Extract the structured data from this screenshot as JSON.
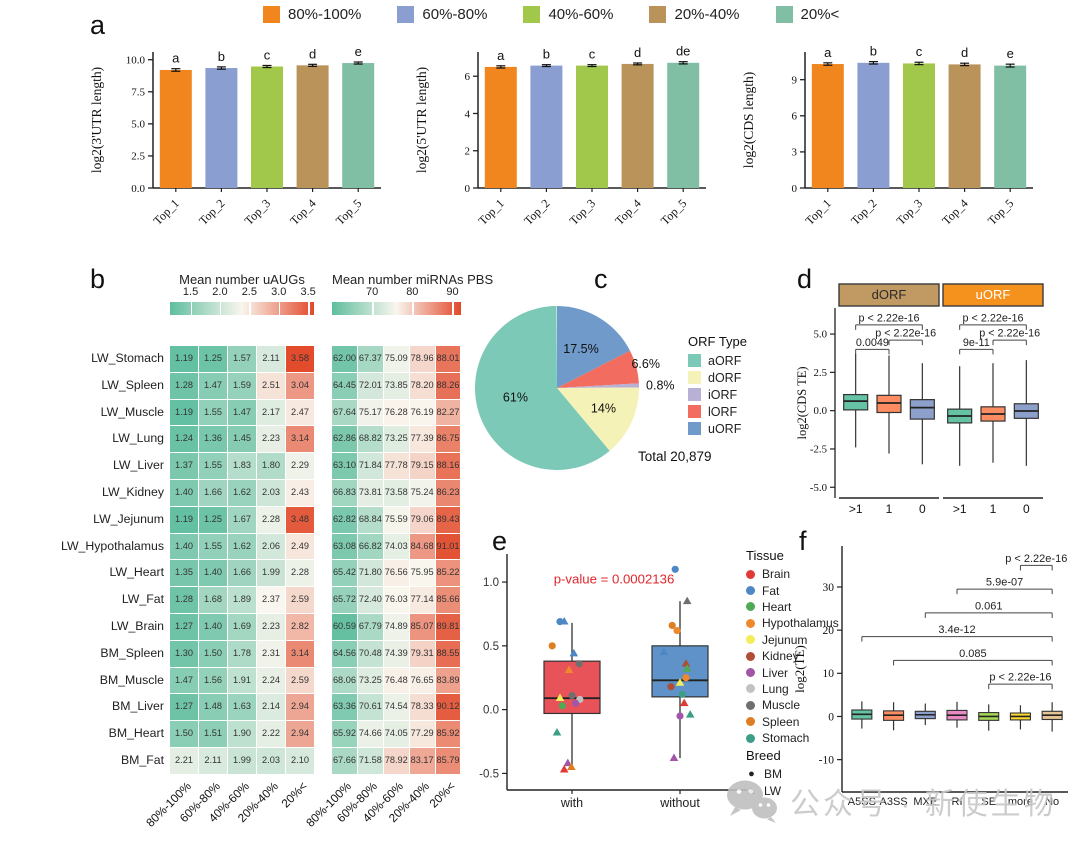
{
  "figure": {
    "panel_letters": {
      "a": "a",
      "b": "b",
      "c": "c",
      "d": "d",
      "e": "e",
      "f": "f"
    },
    "legend_a": {
      "items": [
        {
          "label": "80%-100%",
          "color": "#F0861D"
        },
        {
          "label": "60%-80%",
          "color": "#8B9ED1"
        },
        {
          "label": "40%-60%",
          "color": "#A2C84B"
        },
        {
          "label": "20%-40%",
          "color": "#B9935A"
        },
        {
          "label": "20%<",
          "color": "#80BFA3"
        }
      ]
    },
    "watermark": {
      "icon": "wechat-icon",
      "text": "公众号 · 新使生物"
    }
  },
  "chart_data": [
    {
      "panel": "a1",
      "type": "bar",
      "ylabel": "log2(3'UTR length)",
      "categories": [
        "Top_1",
        "Top_2",
        "Top_3",
        "Top_4",
        "Top_5"
      ],
      "values": [
        9.2,
        9.35,
        9.47,
        9.56,
        9.74
      ],
      "errors": [
        0.1,
        0.09,
        0.08,
        0.08,
        0.08
      ],
      "sig_letters": [
        "a",
        "b",
        "c",
        "d",
        "e"
      ],
      "yticks": [
        "0.0",
        "2.5",
        "5.0",
        "7.5",
        "10.0"
      ],
      "ylim": [
        0,
        10.6
      ]
    },
    {
      "panel": "a2",
      "type": "bar",
      "ylabel": "log2(5'UTR length)",
      "categories": [
        "Top_1",
        "Top_2",
        "Top_3",
        "Top_4",
        "Top_5"
      ],
      "values": [
        6.5,
        6.57,
        6.57,
        6.66,
        6.72
      ],
      "errors": [
        0.06,
        0.05,
        0.05,
        0.05,
        0.06
      ],
      "sig_letters": [
        "a",
        "b",
        "c",
        "d",
        "de"
      ],
      "yticks": [
        "0",
        "2",
        "4",
        "6"
      ],
      "ylim": [
        0,
        7.3
      ]
    },
    {
      "panel": "a3",
      "type": "bar",
      "ylabel": "log2(CDS length)",
      "categories": [
        "Top_1",
        "Top_2",
        "Top_3",
        "Top_4",
        "Top_5"
      ],
      "values": [
        10.3,
        10.4,
        10.35,
        10.27,
        10.17
      ],
      "errors": [
        0.1,
        0.1,
        0.1,
        0.1,
        0.12
      ],
      "sig_letters": [
        "a",
        "b",
        "c",
        "d",
        "e"
      ],
      "yticks": [
        "0",
        "3",
        "6",
        "9"
      ],
      "ylim": [
        0,
        11.3
      ]
    },
    {
      "panel": "b",
      "type": "heatmap",
      "col_labels": [
        "80%-100%",
        "60%-80%",
        "40%-60%",
        "20%-40%",
        "20%<"
      ],
      "gradient": [
        "#5FBE9F",
        "#F9F6EE",
        "#E2492A"
      ],
      "blocks": [
        {
          "title": "Mean number uAUGs",
          "scale_ticks": [
            "1.5",
            "2.0",
            "2.5",
            "3.0",
            "3.5"
          ],
          "domain": [
            1.15,
            3.6
          ]
        },
        {
          "title": "Mean number miRNAs PBS",
          "scale_ticks": [
            "70",
            "80",
            "90"
          ],
          "domain": [
            60,
            92
          ]
        }
      ],
      "rows": [
        {
          "label": "LW_Stomach",
          "uaugs": [
            "1.19",
            "1.25",
            "1.57",
            "2.11",
            "3.58"
          ],
          "mirnas": [
            "62.00",
            "67.37",
            "75.09",
            "78.96",
            "88.01"
          ]
        },
        {
          "label": "LW_Spleen",
          "uaugs": [
            "1.28",
            "1.47",
            "1.59",
            "2.51",
            "3.04"
          ],
          "mirnas": [
            "64.45",
            "72.01",
            "73.85",
            "78.20",
            "88.26"
          ]
        },
        {
          "label": "LW_Muscle",
          "uaugs": [
            "1.19",
            "1.55",
            "1.47",
            "2.17",
            "2.47"
          ],
          "mirnas": [
            "67.64",
            "75.17",
            "76.28",
            "76.19",
            "82.27"
          ]
        },
        {
          "label": "LW_Lung",
          "uaugs": [
            "1.24",
            "1.36",
            "1.45",
            "2.23",
            "3.14"
          ],
          "mirnas": [
            "62.86",
            "68.82",
            "73.25",
            "77.39",
            "86.75"
          ]
        },
        {
          "label": "LW_Liver",
          "uaugs": [
            "1.37",
            "1.55",
            "1.83",
            "1.80",
            "2.29"
          ],
          "mirnas": [
            "63.10",
            "71.84",
            "77.78",
            "79.15",
            "88.16"
          ]
        },
        {
          "label": "LW_Kidney",
          "uaugs": [
            "1.40",
            "1.66",
            "1.62",
            "2.03",
            "2.43"
          ],
          "mirnas": [
            "66.83",
            "73.81",
            "73.58",
            "75.24",
            "86.23"
          ]
        },
        {
          "label": "LW_Jejunum",
          "uaugs": [
            "1.19",
            "1.25",
            "1.67",
            "2.28",
            "3.48"
          ],
          "mirnas": [
            "62.82",
            "68.84",
            "75.59",
            "79.06",
            "89.43"
          ]
        },
        {
          "label": "LW_Hypothalamus",
          "uaugs": [
            "1.40",
            "1.55",
            "1.62",
            "2.06",
            "2.49"
          ],
          "mirnas": [
            "63.08",
            "66.82",
            "74.03",
            "84.68",
            "91.01"
          ]
        },
        {
          "label": "LW_Heart",
          "uaugs": [
            "1.35",
            "1.40",
            "1.66",
            "1.99",
            "2.28"
          ],
          "mirnas": [
            "65.42",
            "71.80",
            "76.56",
            "75.95",
            "85.22"
          ]
        },
        {
          "label": "LW_Fat",
          "uaugs": [
            "1.28",
            "1.68",
            "1.89",
            "2.37",
            "2.59"
          ],
          "mirnas": [
            "65.72",
            "72.40",
            "76.03",
            "77.14",
            "85.66"
          ]
        },
        {
          "label": "LW_Brain",
          "uaugs": [
            "1.27",
            "1.40",
            "1.69",
            "2.23",
            "2.82"
          ],
          "mirnas": [
            "60.59",
            "67.79",
            "74.89",
            "85.07",
            "89.81"
          ]
        },
        {
          "label": "BM_Spleen",
          "uaugs": [
            "1.30",
            "1.50",
            "1.78",
            "2.31",
            "3.14"
          ],
          "mirnas": [
            "64.56",
            "70.48",
            "74.39",
            "79.31",
            "88.55"
          ]
        },
        {
          "label": "BM_Muscle",
          "uaugs": [
            "1.47",
            "1.56",
            "1.91",
            "2.24",
            "2.59"
          ],
          "mirnas": [
            "68.06",
            "73.25",
            "76.48",
            "76.65",
            "83.89"
          ]
        },
        {
          "label": "BM_Liver",
          "uaugs": [
            "1.27",
            "1.48",
            "1.63",
            "2.14",
            "2.94"
          ],
          "mirnas": [
            "63.36",
            "70.61",
            "74.54",
            "78.33",
            "90.12"
          ]
        },
        {
          "label": "BM_Heart",
          "uaugs": [
            "1.50",
            "1.51",
            "1.90",
            "2.22",
            "2.94"
          ],
          "mirnas": [
            "65.92",
            "74.66",
            "74.05",
            "77.29",
            "85.92"
          ]
        },
        {
          "label": "BM_Fat",
          "uaugs": [
            "2.21",
            "2.11",
            "1.99",
            "2.03",
            "2.10"
          ],
          "mirnas": [
            "67.66",
            "71.58",
            "78.92",
            "83.17",
            "85.79"
          ]
        }
      ]
    },
    {
      "panel": "c",
      "type": "pie",
      "legend_title": "ORF Type",
      "total_label": "Total 20,879",
      "slices": [
        {
          "label": "aORF",
          "value": 61,
          "display": "61%",
          "color": "#7DC9B7"
        },
        {
          "label": "dORF",
          "value": 14,
          "display": "14%",
          "color": "#F5F2B8"
        },
        {
          "label": "iORF",
          "value": 0.8,
          "display": "0.8%",
          "color": "#B9B0D6"
        },
        {
          "label": "lORF",
          "value": 6.6,
          "display": "6.6%",
          "color": "#F26D5F"
        },
        {
          "label": "uORF",
          "value": 17.5,
          "display": "17.5%",
          "color": "#6F9AC9"
        }
      ],
      "draw_order": [
        "uORF",
        "lORF",
        "iORF",
        "dORF",
        "aORF"
      ]
    },
    {
      "panel": "d",
      "type": "box",
      "ylabel": "log2(CDS TE)",
      "yticks": [
        "5.0",
        "2.5",
        "0.0",
        "-2.5",
        "-5.0"
      ],
      "ylim": [
        -5.7,
        6.7
      ],
      "groups": [
        ">1",
        "1",
        "0"
      ],
      "box_colors": [
        "#66C2A5",
        "#FC8D62",
        "#8DA0CB"
      ],
      "facets": [
        {
          "label": "dORF",
          "header_color": "#C09A62",
          "header_text": "#2b2b2b",
          "boxes": [
            [
              -2.4,
              0.05,
              0.62,
              1.05,
              3.7
            ],
            [
              -2.8,
              -0.12,
              0.5,
              1.0,
              3.6
            ],
            [
              -3.5,
              -0.55,
              0.2,
              0.72,
              3.1
            ]
          ],
          "brackets": [
            {
              "i": 0,
              "j": 1,
              "y": 4.0,
              "label": "0.0049"
            },
            {
              "i": 1,
              "j": 2,
              "y": 4.6,
              "label": "p < 2.22e-16"
            },
            {
              "i": 0,
              "j": 2,
              "y": 5.6,
              "label": "p < 2.22e-16"
            }
          ]
        },
        {
          "label": "uORF",
          "header_color": "#F5921E",
          "header_text": "#ffffff",
          "boxes": [
            [
              -3.6,
              -0.8,
              -0.35,
              0.1,
              2.9
            ],
            [
              -3.4,
              -0.68,
              -0.22,
              0.25,
              3.1
            ],
            [
              -3.6,
              -0.5,
              -0.02,
              0.45,
              3.3
            ]
          ],
          "brackets": [
            {
              "i": 0,
              "j": 1,
              "y": 4.0,
              "label": "9e-11"
            },
            {
              "i": 1,
              "j": 2,
              "y": 4.6,
              "label": "p < 2.22e-16"
            },
            {
              "i": 0,
              "j": 2,
              "y": 5.6,
              "label": "p < 2.22e-16"
            }
          ]
        }
      ]
    },
    {
      "panel": "e",
      "type": "box-scatter",
      "p_value": "p-value = 0.0002136",
      "p_color": "#E0262B",
      "groups": [
        "with",
        "without"
      ],
      "yticks": [
        "1.0",
        "0.5",
        "0.0",
        "-0.5"
      ],
      "ylim": [
        -0.63,
        1.22
      ],
      "box_colors": [
        "#E8535A",
        "#5E92C8"
      ],
      "boxes": [
        [
          -0.47,
          -0.03,
          0.09,
          0.38,
          0.68
        ],
        [
          -0.38,
          0.1,
          0.23,
          0.5,
          0.85
        ]
      ],
      "legend": {
        "tissue_title": "Tissue",
        "breed_title": "Breed",
        "tissues": [
          {
            "label": "Brain",
            "color": "#E03936"
          },
          {
            "label": "Fat",
            "color": "#4E87C5"
          },
          {
            "label": "Heart",
            "color": "#50A953"
          },
          {
            "label": "Hypothalamus",
            "color": "#F0882C"
          },
          {
            "label": "Jejunum",
            "color": "#F5EC5A"
          },
          {
            "label": "Kidney",
            "color": "#AF4E35"
          },
          {
            "label": "Liver",
            "color": "#A156A8"
          },
          {
            "label": "Lung",
            "color": "#C2C2C2"
          },
          {
            "label": "Muscle",
            "color": "#6F6F6F"
          },
          {
            "label": "Spleen",
            "color": "#DE7E23"
          },
          {
            "label": "Stomach",
            "color": "#3D9E88"
          }
        ],
        "breeds": [
          {
            "label": "BM",
            "marker": "circle"
          },
          {
            "label": "LW",
            "marker": "triangle"
          }
        ]
      },
      "points": {
        "with": [
          {
            "tissue": "Fat",
            "breed": "BM",
            "y": 0.69,
            "dx": -0.2
          },
          {
            "tissue": "Fat",
            "breed": "LW",
            "y": 0.69,
            "dx": -0.13
          },
          {
            "tissue": "Spleen",
            "breed": "BM",
            "y": 0.5,
            "dx": -0.33
          },
          {
            "tissue": "Fat",
            "breed": "LW",
            "y": 0.44,
            "dx": 0.03
          },
          {
            "tissue": "Muscle",
            "breed": "BM",
            "y": 0.36,
            "dx": 0.12
          },
          {
            "tissue": "Hypothalamus",
            "breed": "LW",
            "y": 0.31,
            "dx": -0.05
          },
          {
            "tissue": "Muscle",
            "breed": "BM",
            "y": 0.11,
            "dx": 0.0
          },
          {
            "tissue": "Jejunum",
            "breed": "LW",
            "y": 0.09,
            "dx": -0.2
          },
          {
            "tissue": "Lung",
            "breed": "BM",
            "y": 0.08,
            "dx": 0.13
          },
          {
            "tissue": "Liver",
            "breed": "BM",
            "y": 0.05,
            "dx": 0.06
          },
          {
            "tissue": "Heart",
            "breed": "BM",
            "y": 0.03,
            "dx": -0.16
          },
          {
            "tissue": "Stomach",
            "breed": "LW",
            "y": -0.18,
            "dx": -0.25
          },
          {
            "tissue": "Liver",
            "breed": "LW",
            "y": -0.42,
            "dx": -0.07
          },
          {
            "tissue": "Spleen",
            "breed": "LW",
            "y": -0.45,
            "dx": -0.01
          },
          {
            "tissue": "Brain",
            "breed": "LW",
            "y": -0.47,
            "dx": -0.13
          }
        ],
        "without": [
          {
            "tissue": "Fat",
            "breed": "BM",
            "y": 1.1,
            "dx": -0.08
          },
          {
            "tissue": "Muscle",
            "breed": "LW",
            "y": 0.85,
            "dx": 0.12
          },
          {
            "tissue": "Spleen",
            "breed": "BM",
            "y": 0.66,
            "dx": -0.13
          },
          {
            "tissue": "Hypothalamus",
            "breed": "BM",
            "y": 0.62,
            "dx": -0.05
          },
          {
            "tissue": "Fat",
            "breed": "LW",
            "y": 0.45,
            "dx": -0.27
          },
          {
            "tissue": "Kidney",
            "breed": "LW",
            "y": 0.36,
            "dx": 0.1
          },
          {
            "tissue": "Heart",
            "breed": "LW",
            "y": 0.32,
            "dx": 0.12
          },
          {
            "tissue": "Hypothalamus",
            "breed": "BM",
            "y": 0.25,
            "dx": 0.1
          },
          {
            "tissue": "Jejunum",
            "breed": "LW",
            "y": 0.21,
            "dx": 0.0
          },
          {
            "tissue": "Kidney",
            "breed": "BM",
            "y": 0.18,
            "dx": -0.15
          },
          {
            "tissue": "Stomach",
            "breed": "BM",
            "y": 0.12,
            "dx": 0.04
          },
          {
            "tissue": "Brain",
            "breed": "LW",
            "y": 0.05,
            "dx": 0.07
          },
          {
            "tissue": "Liver",
            "breed": "BM",
            "y": -0.05,
            "dx": 0.0
          },
          {
            "tissue": "Stomach",
            "breed": "LW",
            "y": -0.04,
            "dx": 0.17
          },
          {
            "tissue": "Liver",
            "breed": "LW",
            "y": -0.38,
            "dx": -0.1
          }
        ]
      }
    },
    {
      "panel": "f",
      "type": "box",
      "ylabel": "log2(TE)",
      "yticks": [
        "30",
        "20",
        "10",
        "0",
        "-10"
      ],
      "ylim": [
        -17.5,
        39.5
      ],
      "categories": [
        "A5SS",
        "A3SS",
        "MXE",
        "RI",
        "SE",
        "more",
        "No"
      ],
      "box_colors": [
        "#66C2A5",
        "#FC8D62",
        "#8DA0CB",
        "#E78AC3",
        "#A6D854",
        "#FFD92F",
        "#E5C494"
      ],
      "boxes": [
        [
          -2.8,
          -0.6,
          0.5,
          1.5,
          3.5
        ],
        [
          -3.2,
          -0.9,
          0.3,
          1.3,
          3.3
        ],
        [
          -2.0,
          -0.5,
          0.4,
          1.2,
          3.0
        ],
        [
          -2.6,
          -0.8,
          0.3,
          1.4,
          3.4
        ],
        [
          -3.3,
          -0.9,
          0.0,
          0.9,
          2.8
        ],
        [
          -3.0,
          -0.8,
          0.0,
          0.8,
          2.6
        ],
        [
          -3.5,
          -0.7,
          0.3,
          1.2,
          3.3
        ]
      ],
      "brackets": [
        {
          "from": "SE",
          "to": "No",
          "y": 7.5,
          "label": "p < 2.22e-16"
        },
        {
          "from": "A3SS",
          "to": "No",
          "y": 13,
          "label": "0.085"
        },
        {
          "from": "A5SS",
          "to": "No",
          "y": 18.5,
          "label": "3.4e-12"
        },
        {
          "from": "MXE",
          "to": "No",
          "y": 24,
          "label": "0.061"
        },
        {
          "from": "RI",
          "to": "No",
          "y": 29.5,
          "label": "5.9e-07"
        },
        {
          "from": "more",
          "to": "No",
          "y": 35,
          "label": "p < 2.22e-16"
        }
      ]
    }
  ]
}
